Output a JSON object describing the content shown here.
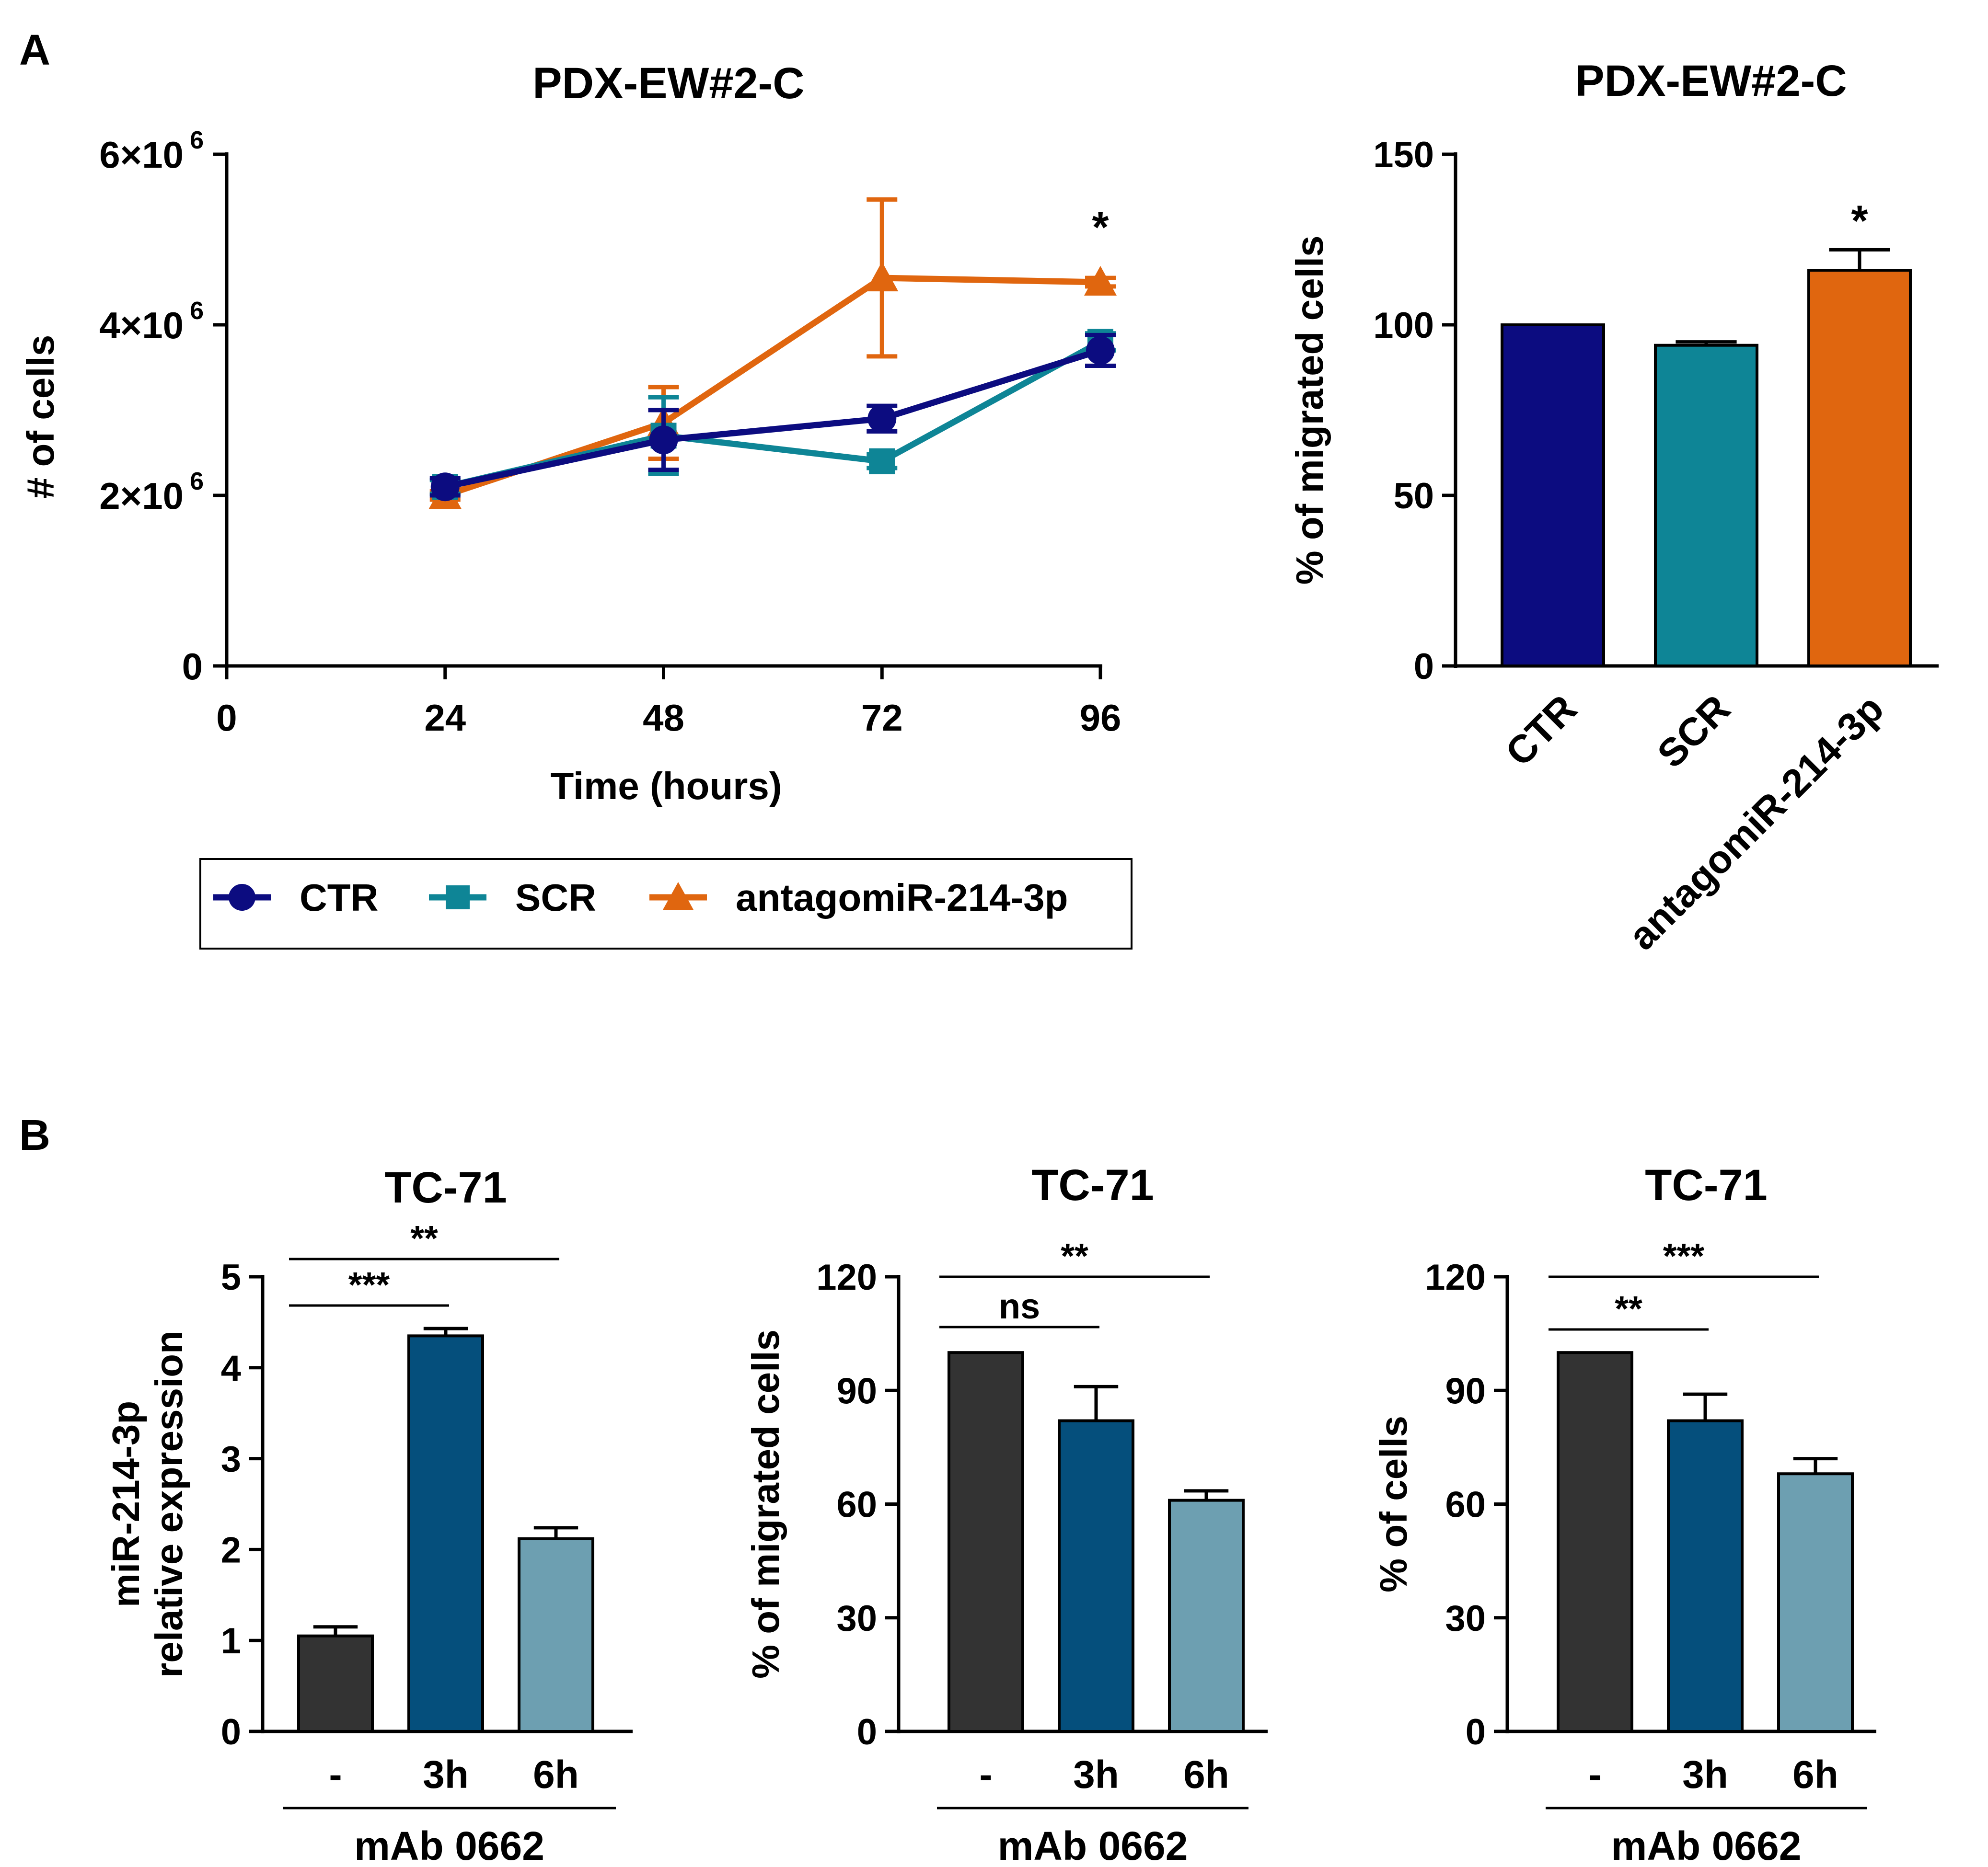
{
  "panel_labels": {
    "a": "A",
    "b": "B"
  },
  "colors": {
    "ctr": "#0c0c80",
    "scr": "#0e8596",
    "antagomir": "#e0660f",
    "b_ctrl": "#333333",
    "b_3h": "#054f7c",
    "b_6h": "#6d9fb1",
    "axis": "#000000"
  },
  "chart_data": [
    {
      "id": "A-left",
      "type": "line",
      "title": "PDX-EW#2-C",
      "xlabel": "Time (hours)",
      "ylabel": "# of cells",
      "xlim": [
        0,
        96
      ],
      "ylim": [
        0,
        6000000
      ],
      "x_ticks": [
        "0",
        "24",
        "48",
        "72",
        "96"
      ],
      "y_ticks": [
        {
          "base": "0",
          "exp": ""
        },
        {
          "base": "2×10",
          "exp": "6"
        },
        {
          "base": "4×10",
          "exp": "6"
        },
        {
          "base": "6×10",
          "exp": "6"
        }
      ],
      "series": [
        {
          "name": "CTR",
          "marker": "circle",
          "x": [
            24,
            48,
            72,
            96
          ],
          "y": [
            2100000,
            2650000,
            2900000,
            3700000
          ],
          "err": [
            100000,
            350000,
            150000,
            180000
          ]
        },
        {
          "name": "SCR",
          "marker": "square",
          "x": [
            24,
            48,
            72,
            96
          ],
          "y": [
            2100000,
            2700000,
            2400000,
            3800000
          ],
          "err": [
            80000,
            450000,
            80000,
            100000
          ]
        },
        {
          "name": "antagomiR-214-3p",
          "marker": "triangle",
          "x": [
            24,
            48,
            72,
            96
          ],
          "y": [
            2000000,
            2850000,
            4550000,
            4500000
          ],
          "err": [
            50000,
            420000,
            920000,
            50000
          ]
        }
      ],
      "annotations": [
        {
          "x": 96,
          "text": "*"
        }
      ],
      "legend": {
        "position": "bottom",
        "entries": [
          "CTR",
          "SCR",
          "antagomiR-214-3p"
        ]
      }
    },
    {
      "id": "A-right",
      "type": "bar",
      "title": "PDX-EW#2-C",
      "ylabel": "% of migrated cells",
      "ylim": [
        0,
        150
      ],
      "y_ticks": [
        "0",
        "50",
        "100",
        "150"
      ],
      "categories": [
        "CTR",
        "SCR",
        "antagomiR-214-3p"
      ],
      "values": [
        100,
        94,
        116
      ],
      "errors": [
        0,
        1,
        6
      ],
      "annotations": [
        {
          "category": "antagomiR-214-3p",
          "text": "*"
        }
      ]
    },
    {
      "id": "B-1",
      "type": "bar",
      "title": "TC-71",
      "ylabel_lines": [
        "miR-214-3p",
        "relative expression"
      ],
      "ylim": [
        0,
        5
      ],
      "y_ticks": [
        "0",
        "1",
        "2",
        "3",
        "4",
        "5"
      ],
      "categories": [
        "-",
        "3h",
        "6h"
      ],
      "group_label": "mAb 0662",
      "values": [
        1.05,
        4.35,
        2.12
      ],
      "errors": [
        0.1,
        0.08,
        0.12
      ],
      "brackets": [
        {
          "text": "***",
          "from": 0,
          "to": 1
        },
        {
          "text": "**",
          "from": 0,
          "to": 2
        }
      ]
    },
    {
      "id": "B-2",
      "type": "bar",
      "title": "TC-71",
      "ylabel": "% of migrated cells",
      "ylim": [
        0,
        120
      ],
      "y_ticks": [
        "0",
        "30",
        "60",
        "90",
        "120"
      ],
      "categories": [
        "-",
        "3h",
        "6h"
      ],
      "group_label": "mAb 0662",
      "values": [
        100,
        82,
        61
      ],
      "errors": [
        0,
        9,
        2.5
      ],
      "brackets": [
        {
          "text": "ns",
          "from": 0,
          "to": 1
        },
        {
          "text": "**",
          "from": 0,
          "to": 2
        }
      ]
    },
    {
      "id": "B-3",
      "type": "bar",
      "title": "TC-71",
      "ylabel": "% of cells",
      "ylim": [
        0,
        120
      ],
      "y_ticks": [
        "0",
        "30",
        "60",
        "90",
        "120"
      ],
      "categories": [
        "-",
        "3h",
        "6h"
      ],
      "group_label": "mAb 0662",
      "values": [
        100,
        82,
        68
      ],
      "errors": [
        0,
        7,
        4
      ],
      "brackets": [
        {
          "text": "**",
          "from": 0,
          "to": 1
        },
        {
          "text": "***",
          "from": 0,
          "to": 2
        }
      ]
    }
  ]
}
